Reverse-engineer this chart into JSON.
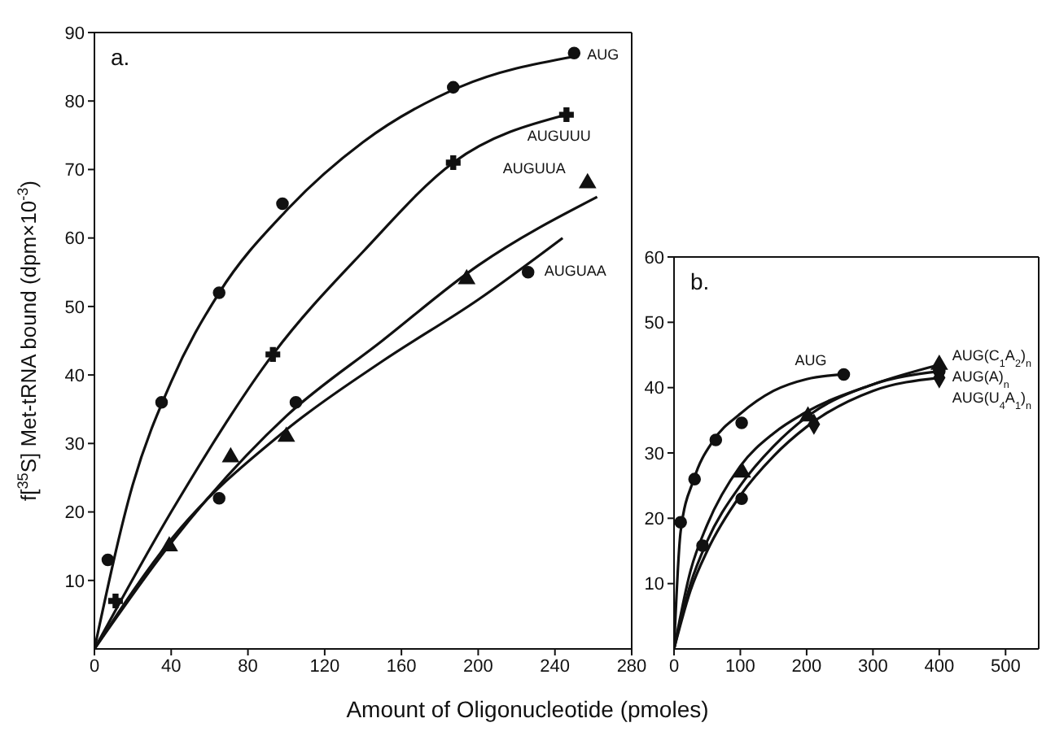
{
  "chart_data": [
    {
      "type": "scatter",
      "xlabel": "Amount of Oligonucleotide (pmoles)",
      "ylabel": "f[$^{35}$S] Met-tRNA bound (dpm×10$^{-3}$)",
      "annotations": [
        "a."
      ],
      "xlim": [
        0,
        280
      ],
      "xticks": [
        0,
        40,
        80,
        120,
        160,
        200,
        240,
        280
      ],
      "ylim": [
        0,
        90
      ],
      "yticks": [
        10,
        20,
        30,
        40,
        50,
        60,
        70,
        80,
        90
      ],
      "series": [
        {
          "name": "AUG",
          "type": "scatter",
          "marker": "circle",
          "color": "#111111",
          "x": [
            7,
            35,
            65,
            98,
            187,
            250
          ],
          "values": [
            13,
            36,
            52,
            65,
            82,
            87
          ]
        },
        {
          "name": "AUGUUU",
          "type": "scatter",
          "marker": "cross",
          "color": "#111111",
          "x": [
            11,
            93,
            187,
            246
          ],
          "values": [
            7,
            43,
            71,
            78
          ]
        },
        {
          "name": "AUGUUA",
          "type": "scatter",
          "marker": "triangle",
          "color": "#111111",
          "x": [
            39,
            71,
            100,
            194,
            257
          ],
          "values": [
            15,
            28,
            31,
            54,
            68
          ]
        },
        {
          "name": "AUGUAA",
          "type": "scatter",
          "marker": "circle",
          "color": "#111111",
          "x": [
            65,
            105,
            226
          ],
          "values": [
            22,
            36,
            55
          ]
        },
        {
          "type": "line",
          "color": "#111111",
          "x": [
            0,
            20,
            40,
            65,
            100,
            140,
            190,
            250
          ],
          "values": [
            0,
            24,
            39,
            52,
            64,
            74,
            82,
            86.5
          ]
        },
        {
          "type": "line",
          "color": "#111111",
          "x": [
            0,
            40,
            93,
            140,
            187,
            246
          ],
          "values": [
            0,
            20,
            43,
            58,
            71,
            78
          ]
        },
        {
          "type": "line",
          "color": "#111111",
          "x": [
            0,
            40,
            100,
            150,
            200,
            262
          ],
          "values": [
            0,
            15.5,
            34,
            45,
            56,
            66
          ]
        },
        {
          "type": "line",
          "color": "#111111",
          "x": [
            0,
            40,
            100,
            150,
            200,
            244
          ],
          "values": [
            0,
            16,
            32,
            42,
            51,
            60
          ]
        }
      ]
    },
    {
      "type": "scatter",
      "annotations": [
        "b."
      ],
      "xlim": [
        0,
        550
      ],
      "xticks": [
        0,
        100,
        200,
        300,
        400,
        500
      ],
      "ylim": [
        0,
        60
      ],
      "yticks": [
        10,
        20,
        30,
        40,
        50,
        60
      ],
      "series": [
        {
          "name": "AUG",
          "type": "scatter",
          "marker": "circle",
          "color": "#111111",
          "x": [
            10,
            31,
            63,
            102,
            256
          ],
          "values": [
            19.4,
            26,
            32,
            34.6,
            42
          ]
        },
        {
          "name": "AUG(C$_{1}$A$_{2}$)$_{n}$",
          "type": "scatter",
          "marker": "triangle",
          "color": "#111111",
          "x": [
            103,
            202,
            400
          ],
          "values": [
            27,
            35.6,
            43.5
          ]
        },
        {
          "name": "AUG(A)$_{n}$",
          "type": "scatter",
          "marker": "circle",
          "color": "#111111",
          "x": [
            43,
            102,
            400
          ],
          "values": [
            15.8,
            23,
            42.5
          ]
        },
        {
          "name": "AUG(U$_{4}$A$_{1}$)$_{n}$",
          "type": "scatter",
          "marker": "diamond",
          "color": "#111111",
          "x": [
            211,
            400
          ],
          "values": [
            34.4,
            41.5
          ]
        },
        {
          "type": "line",
          "color": "#111111",
          "x": [
            0,
            10,
            30,
            60,
            100,
            150,
            200,
            250
          ],
          "values": [
            0,
            18,
            26,
            32,
            36,
            39.5,
            41.3,
            42
          ]
        },
        {
          "type": "line",
          "color": "#111111",
          "x": [
            0,
            25,
            50,
            100,
            150,
            200,
            300,
            400
          ],
          "values": [
            0,
            12,
            19,
            28,
            33,
            36.3,
            40.5,
            43.5
          ]
        },
        {
          "type": "line",
          "color": "#111111",
          "x": [
            0,
            25,
            50,
            100,
            150,
            200,
            300,
            400
          ],
          "values": [
            0,
            10,
            16.5,
            25,
            31,
            35.5,
            40.5,
            42.5
          ]
        },
        {
          "type": "line",
          "color": "#111111",
          "x": [
            0,
            25,
            50,
            100,
            150,
            200,
            300,
            400
          ],
          "values": [
            0,
            9,
            15,
            23.5,
            29.5,
            34,
            39.5,
            41.5
          ]
        }
      ]
    }
  ]
}
